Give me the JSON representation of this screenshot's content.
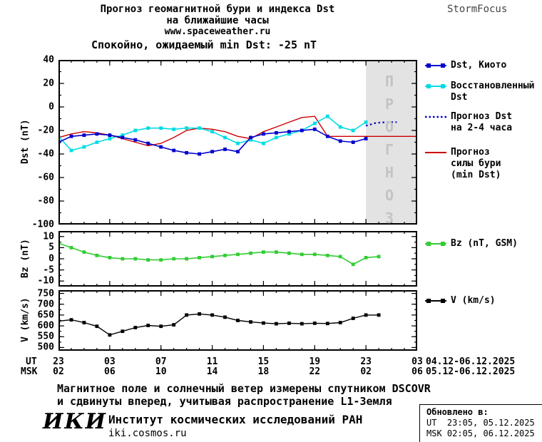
{
  "header": {
    "title_line1": "Прогноз геомагнитной бури и индекса Dst",
    "title_line2": "на ближайшие часы",
    "website": "www.spaceweather.ru",
    "brand": "StormFocus"
  },
  "status": {
    "label": "Спокойно, ожидаемый min Dst: -25 nT",
    "color": "#0000e0"
  },
  "axis": {
    "ut_label": "UT",
    "msk_label": "MSK",
    "ut_ticks": [
      "23",
      "03",
      "07",
      "11",
      "15",
      "19",
      "23",
      "03"
    ],
    "msk_ticks": [
      "02",
      "06",
      "10",
      "14",
      "18",
      "22",
      "02",
      "06"
    ],
    "ut_daterange": "04.12-06.12.2025",
    "msk_daterange": "05.12-06.12.2025"
  },
  "legend": {
    "items": [
      {
        "label": "Dst, Киото",
        "color": "#0000cc",
        "style": "solid",
        "marker": "square"
      },
      {
        "label": "Восстановленный\nDst",
        "color": "#00dce4",
        "style": "solid",
        "marker": "square"
      },
      {
        "label": "Прогноз Dst\nна 2-4 часа",
        "color": "#0000cc",
        "style": "dotted",
        "marker": "none"
      },
      {
        "label": "Прогноз\nсилы бури\n(min Dst)",
        "color": "#cc0000",
        "style": "solid",
        "marker": "none"
      },
      {
        "label": "Bz (nT, GSM)",
        "color": "#33cc33",
        "style": "solid",
        "marker": "square"
      },
      {
        "label": "V (km/s)",
        "color": "#000000",
        "style": "solid",
        "marker": "square"
      }
    ]
  },
  "footer": {
    "note_line1": "Магнитное поле и солнечный ветер измерены спутником DSCOVR",
    "note_line2": "и сдвинуты вперед, учитывая распространение L1-Земля",
    "logo": "ИКИ",
    "institute": "Институт космических исследований РАН",
    "site": "iki.cosmos.ru",
    "updated_label": "Обновлено в:",
    "updated_ut": "UT  23:05, 05.12.2025",
    "updated_msk": "MSK 02:05, 06.12.2025"
  },
  "chart_data": [
    {
      "type": "line",
      "ylabel": "Dst (nT)",
      "xlim": [
        0,
        28
      ],
      "ylim": [
        -100,
        40
      ],
      "xticks": [
        0,
        4,
        8,
        12,
        16,
        20,
        24,
        28
      ],
      "yticks": [
        40,
        20,
        0,
        -20,
        -40,
        -60,
        -80,
        -100
      ],
      "xminor": 1,
      "yminor": 10,
      "band": {
        "x0": 24,
        "x1": 28,
        "color": "#e3e3e3",
        "label": "ПРОГНОЗ"
      },
      "series": [
        {
          "name": "Прогноз силы бури (min Dst)",
          "color": "#cc0000",
          "width": 1.4,
          "marker": "none",
          "x": [
            0,
            1,
            2,
            3,
            4,
            5,
            6,
            7,
            8,
            9,
            10,
            11,
            12,
            13,
            14,
            15,
            16,
            17,
            18,
            19,
            20,
            21,
            22,
            23,
            24,
            25,
            26,
            27,
            28
          ],
          "y": [
            -26,
            -23,
            -21,
            -22,
            -24,
            -27,
            -30,
            -33,
            -31,
            -26,
            -20,
            -18,
            -19,
            -21,
            -25,
            -27,
            -21,
            -17,
            -13,
            -9,
            -8,
            -25,
            -25,
            -25,
            -25,
            -25,
            -25,
            -25,
            -25
          ]
        },
        {
          "name": "Восстановленный Dst",
          "color": "#00dce4",
          "width": 1.6,
          "marker": "square",
          "x": [
            0,
            1,
            2,
            3,
            4,
            5,
            6,
            7,
            8,
            9,
            10,
            11,
            12,
            13,
            14,
            15,
            16,
            17,
            18,
            19,
            20,
            21,
            22,
            23,
            24
          ],
          "y": [
            -25,
            -37,
            -34,
            -30,
            -27,
            -24,
            -20,
            -18,
            -18,
            -19,
            -18,
            -18,
            -21,
            -26,
            -31,
            -28,
            -31,
            -26,
            -23,
            -20,
            -14,
            -8,
            -17,
            -20,
            -13
          ]
        },
        {
          "name": "Dst, Киото",
          "color": "#0000cc",
          "width": 1.6,
          "marker": "square",
          "x": [
            0,
            1,
            2,
            3,
            4,
            5,
            6,
            7,
            8,
            9,
            10,
            11,
            12,
            13,
            14,
            15,
            16,
            17,
            18,
            19,
            20,
            21,
            22,
            23,
            24
          ],
          "y": [
            -30,
            -25,
            -24,
            -23,
            -24,
            -26,
            -28,
            -31,
            -34,
            -37,
            -39,
            -40,
            -38,
            -36,
            -38,
            -26,
            -23,
            -22,
            -21,
            -20,
            -19,
            -25,
            -29,
            -30,
            -27
          ]
        },
        {
          "name": "Прогноз Dst на 2-4 часа",
          "color": "#0000cc",
          "width": 2.2,
          "dash": "2.5,3.5",
          "marker": "none",
          "x": [
            24,
            24.8,
            25.6,
            26.4
          ],
          "y": [
            -16,
            -13.5,
            -13,
            -13
          ]
        }
      ]
    },
    {
      "type": "line",
      "ylabel": "Bz (nT)",
      "xlim": [
        0,
        28
      ],
      "ylim": [
        -12.5,
        12.5
      ],
      "xticks": [
        0,
        4,
        8,
        12,
        16,
        20,
        24,
        28
      ],
      "yticks": [
        10,
        5,
        0,
        -5,
        -10
      ],
      "xminor": 1,
      "yminor": 2.5,
      "series": [
        {
          "name": "Bz (nT, GSM)",
          "color": "#33cc33",
          "width": 1.6,
          "marker": "square",
          "x": [
            0,
            1,
            2,
            3,
            4,
            5,
            6,
            7,
            8,
            9,
            10,
            11,
            12,
            13,
            14,
            15,
            16,
            17,
            18,
            19,
            20,
            21,
            22,
            23,
            24,
            25
          ],
          "y": [
            7,
            5,
            3,
            1.5,
            0.5,
            0,
            0,
            -0.5,
            -0.5,
            0,
            0,
            0.5,
            1,
            1.5,
            2,
            2.5,
            3,
            3,
            2.5,
            2,
            2,
            1.5,
            1,
            -2.5,
            0.5,
            1
          ]
        }
      ]
    },
    {
      "type": "line",
      "ylabel": "V (km/s)",
      "xlim": [
        0,
        28
      ],
      "ylim": [
        485,
        765
      ],
      "xticks": [
        0,
        4,
        8,
        12,
        16,
        20,
        24,
        28
      ],
      "yticks": [
        750,
        700,
        650,
        600,
        550,
        500
      ],
      "xminor": 1,
      "yminor": 25,
      "series": [
        {
          "name": "V (km/s)",
          "color": "#000000",
          "width": 1.4,
          "marker": "square",
          "x": [
            0,
            1,
            2,
            3,
            4,
            5,
            6,
            7,
            8,
            9,
            10,
            11,
            12,
            13,
            14,
            15,
            16,
            17,
            18,
            19,
            20,
            21,
            22,
            23,
            24,
            25
          ],
          "y": [
            622,
            628,
            615,
            598,
            558,
            575,
            592,
            602,
            598,
            605,
            650,
            655,
            650,
            640,
            625,
            618,
            613,
            610,
            612,
            610,
            612,
            611,
            615,
            635,
            650,
            650
          ]
        }
      ]
    }
  ]
}
